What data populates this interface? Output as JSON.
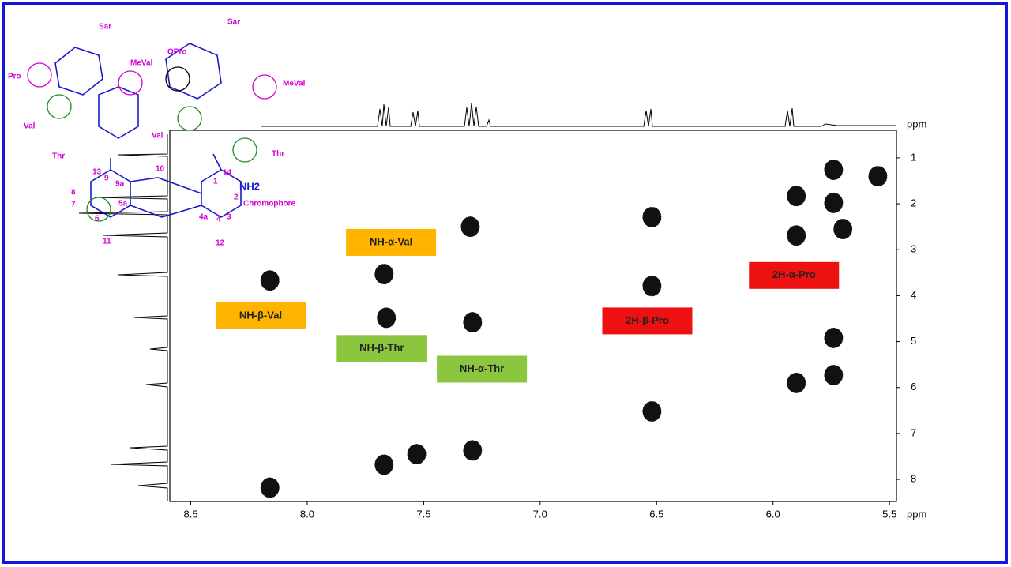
{
  "chart_data": {
    "type": "scatter",
    "x_label": "ppm",
    "trace_label": "ppm",
    "x": [
      8.16,
      8.16,
      7.67,
      7.66,
      7.67,
      7.53,
      7.29,
      7.29,
      7.3,
      6.52,
      6.52,
      6.52,
      5.9,
      5.9,
      5.9,
      5.74,
      5.74,
      5.7,
      5.55,
      5.74,
      5.74
    ],
    "values": [
      3.67,
      8.18,
      3.53,
      4.48,
      7.68,
      7.45,
      4.58,
      7.37,
      2.5,
      2.29,
      3.79,
      6.52,
      1.83,
      2.69,
      5.9,
      1.26,
      1.98,
      2.55,
      1.4,
      4.92,
      5.73
    ],
    "color": "#111111",
    "xlim": [
      8.59,
      5.47
    ],
    "ylim": [
      0.4,
      8.48
    ],
    "xticks": [
      8.5,
      {
        "value": 8,
        "label": "8.0"
      },
      7.5,
      {
        "value": 7,
        "label": "7.0"
      },
      6.5,
      {
        "value": 6,
        "label": "6.0"
      },
      5.5
    ],
    "yticks": [
      1,
      2,
      3,
      4,
      5,
      6,
      7,
      8
    ],
    "annotations": [
      {
        "text": "NH-α-Val",
        "x": 7.64,
        "y": 2.84,
        "color": "#ffb400"
      },
      {
        "text": "NH-β-Val",
        "x": 8.2,
        "y": 4.44,
        "color": "#ffb400"
      },
      {
        "text": "NH-β-Thr",
        "x": 7.68,
        "y": 5.15,
        "color": "#8cc63f"
      },
      {
        "text": "NH-α-Thr",
        "x": 7.25,
        "y": 5.6,
        "color": "#8cc63f"
      },
      {
        "text": "2H-β-Pro",
        "x": 6.54,
        "y": 4.55,
        "color": "#ee1111"
      },
      {
        "text": "2H-α-Pro",
        "x": 5.91,
        "y": 3.56,
        "color": "#ee1111"
      }
    ]
  },
  "structure": {
    "labels": [
      "Sar",
      "Sar",
      "Pro",
      "OPro",
      "MeVal",
      "MeVal",
      "Val",
      "Val",
      "Thr",
      "Thr",
      "Chromophore",
      "NH2"
    ],
    "numbers": [
      "1",
      "2",
      "3",
      "4",
      "4a",
      "5a",
      "6",
      "7",
      "8",
      "9",
      "9a",
      "10",
      "11",
      "12",
      "13",
      "14"
    ]
  }
}
